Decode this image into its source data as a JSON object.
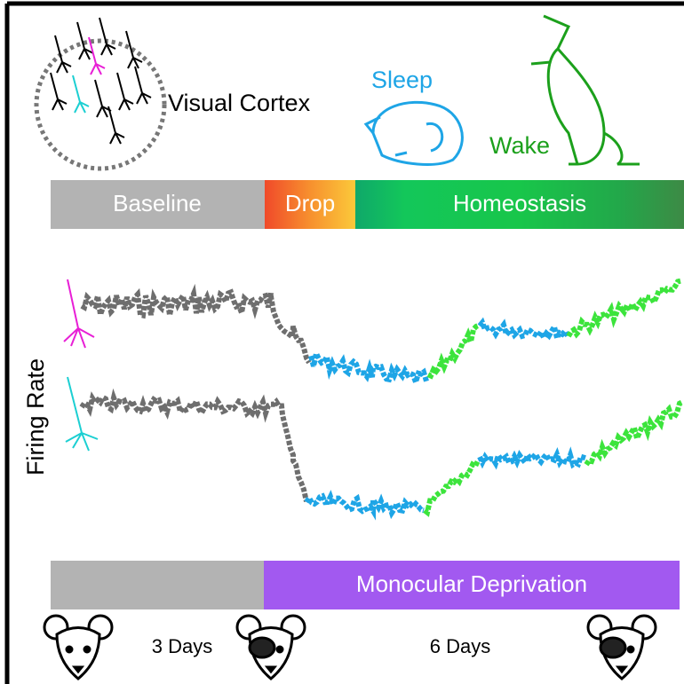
{
  "header": {
    "cortex": "Visual Cortex",
    "sleep": "Sleep",
    "wake": "Wake"
  },
  "phases": [
    "Baseline",
    "Drop",
    "Homeostasis"
  ],
  "y_axis": "Firing Rate",
  "condition": "Monocular Deprivation",
  "durations": [
    "3 Days",
    "6 Days"
  ]
}
